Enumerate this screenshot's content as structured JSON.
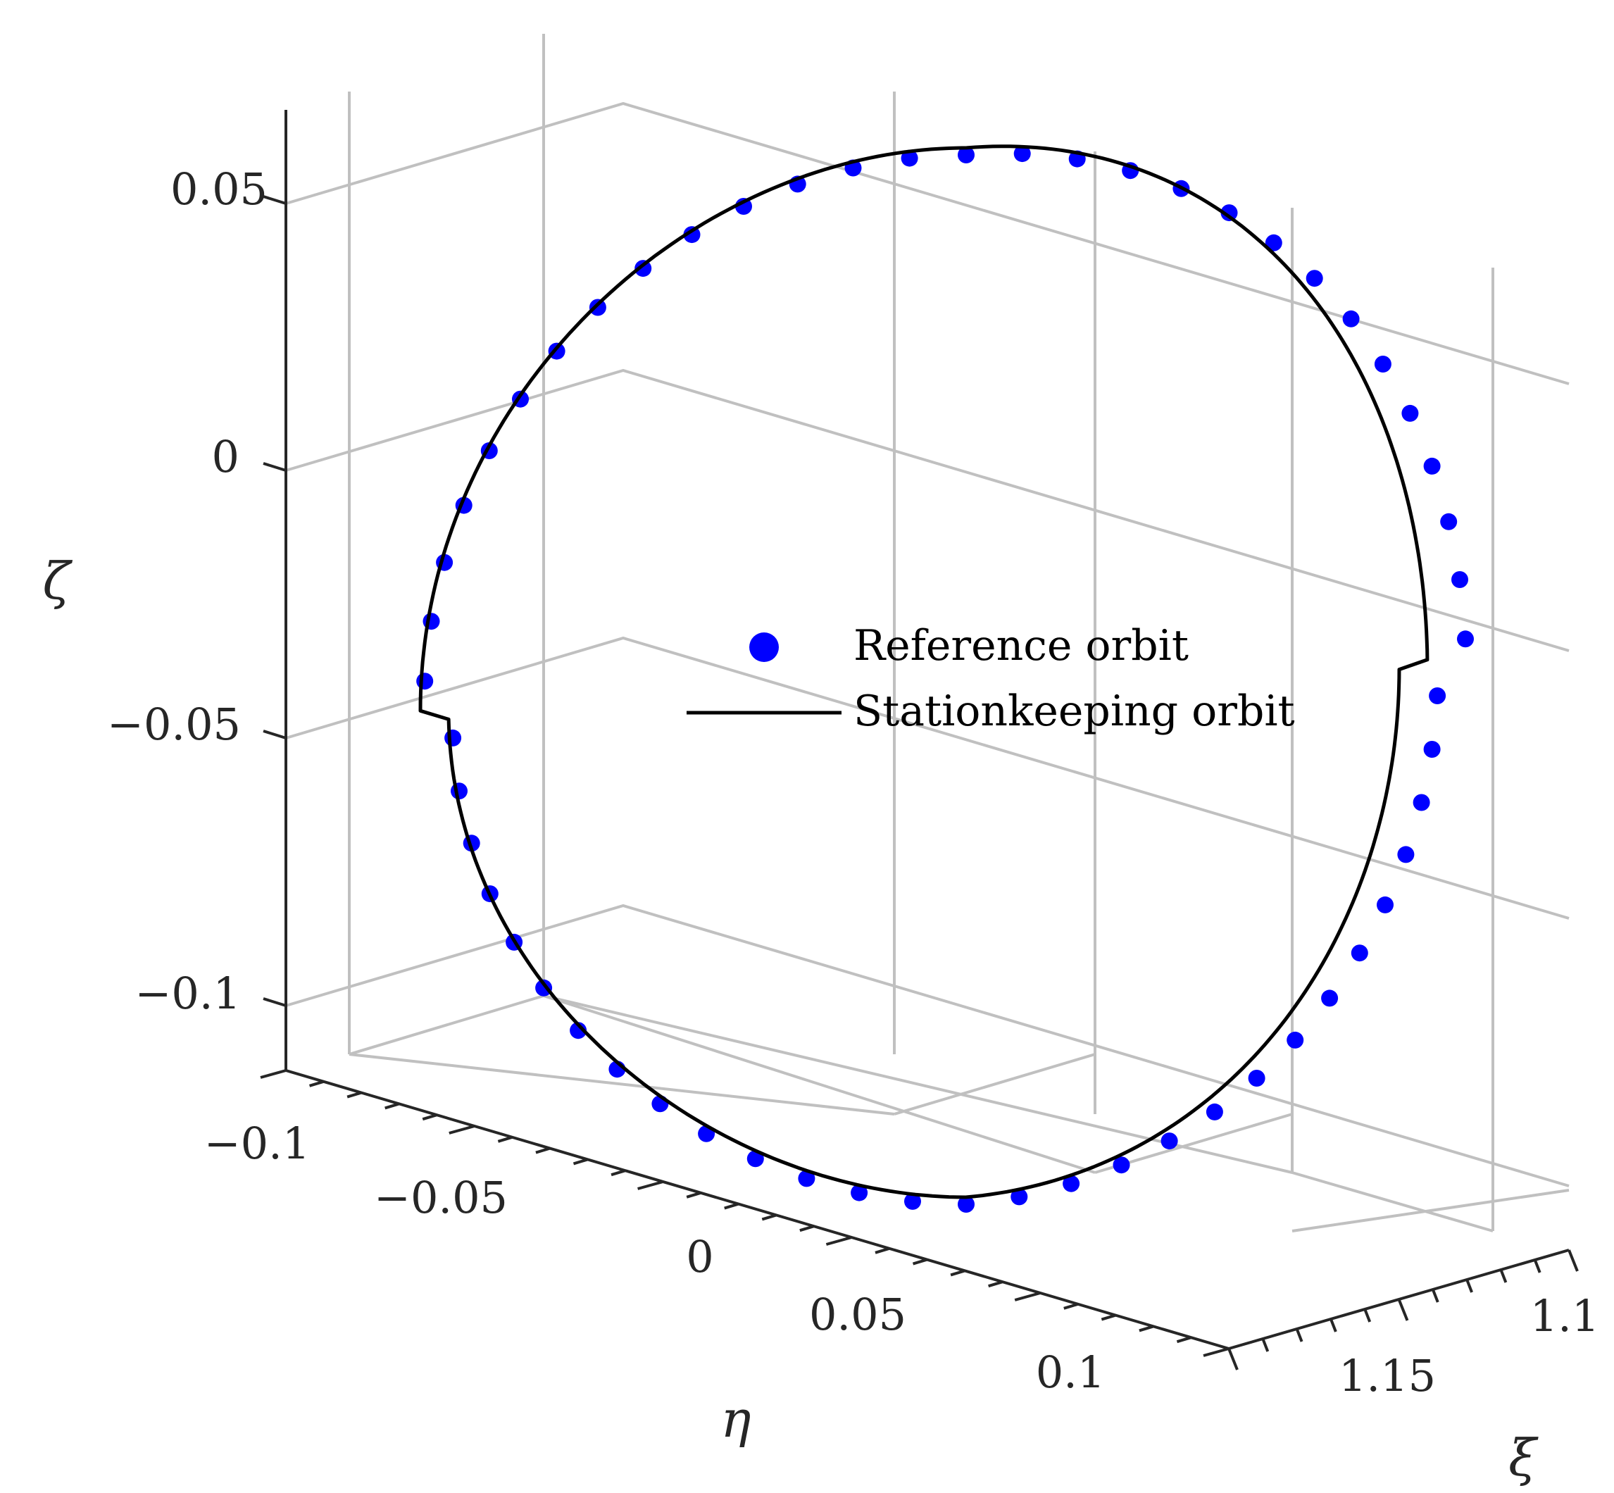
{
  "chart_data": {
    "type": "scatter",
    "title": "",
    "axes": {
      "x": {
        "label": "η",
        "ticks": [
          "−0.1",
          "−0.05",
          "0",
          "0.05",
          "0.1"
        ]
      },
      "y": {
        "label": "ξ",
        "ticks": [
          "1.1",
          "1.15"
        ]
      },
      "z": {
        "label": "ζ",
        "ticks": [
          "0.05",
          "0",
          "−0.05",
          "−0.1"
        ]
      }
    },
    "grid": true,
    "legend": {
      "placement": "center"
    },
    "series": [
      {
        "name": "Reference orbit",
        "style": "markers",
        "color": "#0000ff"
      },
      {
        "name": "Stationkeeping orbit",
        "style": "line",
        "color": "#000000"
      }
    ]
  }
}
